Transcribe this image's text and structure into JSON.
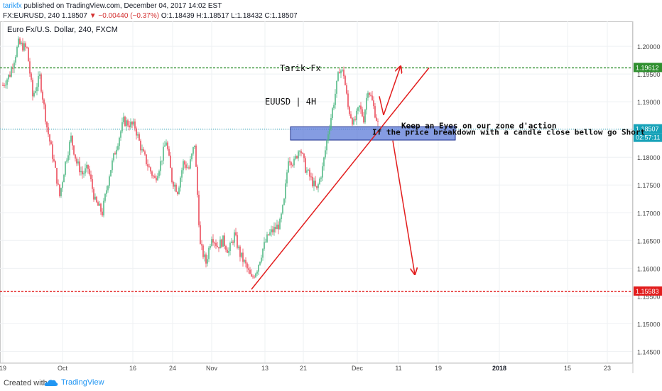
{
  "header": {
    "author": "tarikfx",
    "published": "published on TradingView.com, December 04, 2017 14:02 EST",
    "symbol": "FX:EURUSD, 240",
    "last": "1.18507",
    "change": "▼ −0.00440 (−0.37%)",
    "ohlc": "O:1.18439  H:1.18517  L:1.18432  C:1.18507"
  },
  "footer": {
    "created_with": "Created with",
    "brand": "TradingView"
  },
  "colors": {
    "up": "#53b987",
    "down": "#eb4d5c",
    "line": "#e21d1d",
    "zone_fill": "#5c7bd8",
    "zone_border": "#1c2f8e",
    "green_level": "#2f8f2f",
    "red_level": "#e21d1d",
    "last_price": "#17a2b8"
  },
  "chart_data": {
    "type": "candlestick",
    "title": "Euro Fx/U.S. Dollar, 240, FXCM",
    "ylim": [
      1.143,
      1.2045
    ],
    "yticks": [
      "1.20000",
      "1.19500",
      "1.19000",
      "1.18500",
      "1.18000",
      "1.17500",
      "1.17000",
      "1.16500",
      "1.16000",
      "1.15500",
      "1.15000",
      "1.14500"
    ],
    "xticks": [
      {
        "label": "19",
        "t": 0
      },
      {
        "label": "Oct",
        "t": 84
      },
      {
        "label": "16",
        "t": 183
      },
      {
        "label": "24",
        "t": 239
      },
      {
        "label": "Nov",
        "t": 294
      },
      {
        "label": "13",
        "t": 369
      },
      {
        "label": "21",
        "t": 423
      },
      {
        "label": "Dec",
        "t": 499
      },
      {
        "label": "11",
        "t": 557
      },
      {
        "label": "19",
        "t": 613
      },
      {
        "label": "2018",
        "t": 699
      },
      {
        "label": "15",
        "t": 795
      },
      {
        "label": "23",
        "t": 851
      }
    ],
    "series_close": [
      [
        0,
        1.193
      ],
      [
        10,
        1.195
      ],
      [
        22,
        1.2005
      ],
      [
        34,
        1.1995
      ],
      [
        42,
        1.191
      ],
      [
        52,
        1.1945
      ],
      [
        62,
        1.1855
      ],
      [
        72,
        1.179
      ],
      [
        80,
        1.173
      ],
      [
        88,
        1.179
      ],
      [
        96,
        1.1835
      ],
      [
        104,
        1.179
      ],
      [
        112,
        1.177
      ],
      [
        120,
        1.178
      ],
      [
        130,
        1.172
      ],
      [
        140,
        1.17
      ],
      [
        150,
        1.177
      ],
      [
        160,
        1.182
      ],
      [
        170,
        1.1865
      ],
      [
        178,
        1.186
      ],
      [
        186,
        1.1855
      ],
      [
        196,
        1.181
      ],
      [
        206,
        1.178
      ],
      [
        214,
        1.176
      ],
      [
        222,
        1.179
      ],
      [
        230,
        1.183
      ],
      [
        238,
        1.176
      ],
      [
        246,
        1.174
      ],
      [
        254,
        1.179
      ],
      [
        262,
        1.178
      ],
      [
        270,
        1.1825
      ],
      [
        278,
        1.164
      ],
      [
        286,
        1.161
      ],
      [
        294,
        1.166
      ],
      [
        302,
        1.164
      ],
      [
        310,
        1.165
      ],
      [
        318,
        1.163
      ],
      [
        326,
        1.166
      ],
      [
        334,
        1.1625
      ],
      [
        342,
        1.1605
      ],
      [
        350,
        1.158
      ],
      [
        358,
        1.16
      ],
      [
        366,
        1.1635
      ],
      [
        374,
        1.166
      ],
      [
        382,
        1.167
      ],
      [
        390,
        1.168
      ],
      [
        396,
        1.172
      ],
      [
        402,
        1.18
      ],
      [
        410,
        1.179
      ],
      [
        418,
        1.182
      ],
      [
        426,
        1.178
      ],
      [
        434,
        1.176
      ],
      [
        442,
        1.174
      ],
      [
        450,
        1.178
      ],
      [
        458,
        1.1845
      ],
      [
        466,
        1.19
      ],
      [
        474,
        1.196
      ],
      [
        480,
        1.195
      ],
      [
        486,
        1.189
      ],
      [
        494,
        1.186
      ],
      [
        502,
        1.189
      ],
      [
        508,
        1.187
      ],
      [
        514,
        1.1925
      ],
      [
        520,
        1.19
      ],
      [
        526,
        1.187
      ],
      [
        530,
        1.1851
      ]
    ],
    "levels": [
      {
        "value": 1.19612,
        "label": "1.19612",
        "color": "green"
      },
      {
        "value": 1.15583,
        "label": "1.15583",
        "color": "red"
      },
      {
        "value": 1.18507,
        "label": "1.18507",
        "sub": "02:57:11",
        "color": "teal"
      }
    ],
    "zone": {
      "t1": 405,
      "t2": 637,
      "y_top": 1.1855,
      "y_bottom": 1.1831
    },
    "trendlines": [
      {
        "t1": 350,
        "y1": 1.1562,
        "t2": 600,
        "y2": 1.19612
      },
      {
        "t1": 536,
        "y1": 1.1876,
        "t2": 560,
        "y2": 1.1964
      },
      {
        "t1": 536,
        "y1": 1.1876,
        "t2": 530,
        "y2": 1.191
      },
      {
        "t1": 549,
        "y1": 1.183,
        "t2": 580,
        "y2": 1.1589
      }
    ],
    "annotations": [
      {
        "text": "Tarik-Fx",
        "t": 390,
        "y": 1.1955
      },
      {
        "text": "EUUSD | 4H",
        "t": 369,
        "y": 1.1895
      },
      {
        "text": "Keep an Eyes on our zone d'action",
        "t": 561,
        "y": 1.1852
      },
      {
        "text": "If the price breakdown with a candle close bellow go Short",
        "t": 520,
        "y": 1.18405
      }
    ]
  }
}
